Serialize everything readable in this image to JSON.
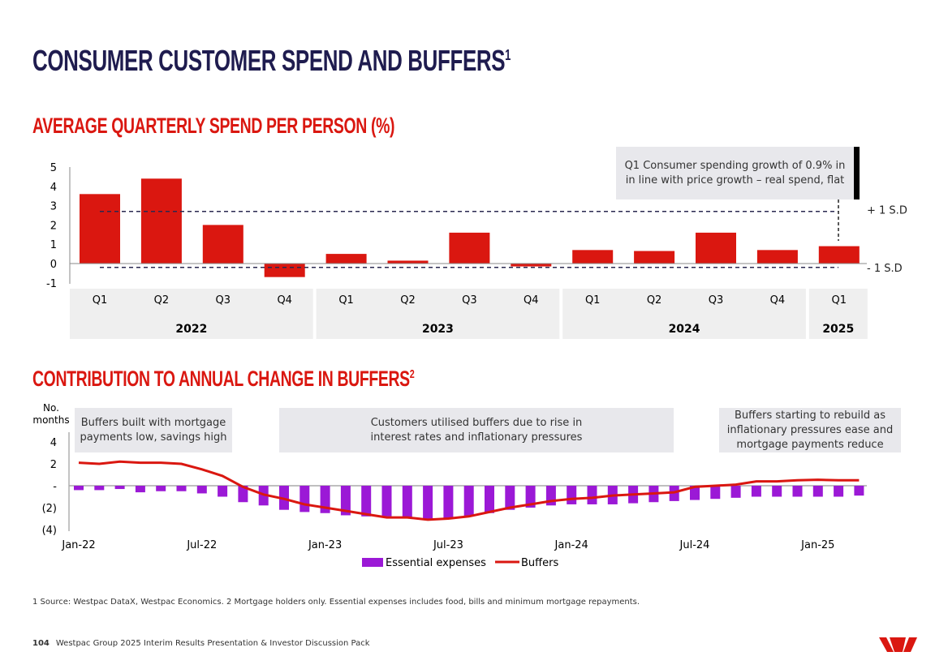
{
  "page": {
    "title": "CONSUMER CUSTOMER SPEND AND BUFFERS",
    "title_sup": "1",
    "footnote": "1 Source: Westpac DataX, Westpac Economics. 2 Mortgage holders only. Essential expenses includes food, bills and minimum mortgage repayments.",
    "page_number": "104",
    "footer_text": "Westpac Group 2025 Interim Results Presentation & Investor Discussion Pack",
    "logo": "Westpac W logo",
    "colors": {
      "brand_red": "#da1710",
      "navy": "#1f1c4f",
      "purple": "#9b19d6",
      "box_grey": "#e8e8ec"
    }
  },
  "chart_data": [
    {
      "type": "bar",
      "title": "AVERAGE QUARTERLY SPEND PER PERSON (%)",
      "categories": [
        "Q1",
        "Q2",
        "Q3",
        "Q4",
        "Q1",
        "Q2",
        "Q3",
        "Q4",
        "Q1",
        "Q2",
        "Q3",
        "Q4",
        "Q1"
      ],
      "groups": [
        {
          "label": "2022",
          "count": 4
        },
        {
          "label": "2023",
          "count": 4
        },
        {
          "label": "2024",
          "count": 4
        },
        {
          "label": "2025",
          "count": 1
        }
      ],
      "values": [
        3.6,
        4.4,
        2.0,
        -0.7,
        0.5,
        0.15,
        1.6,
        -0.15,
        0.7,
        0.65,
        1.6,
        0.7,
        0.9
      ],
      "ylim": [
        -1,
        5
      ],
      "yticks": [
        "5",
        "4",
        "3",
        "2",
        "1",
        "0",
        "-1"
      ],
      "reference_lines": [
        {
          "label": "+ 1 S.D",
          "value": 2.7
        },
        {
          "label": "- 1 S.D",
          "value": -0.2
        }
      ],
      "annotation": "Q1 Consumer spending growth of 0.9% in in line with price growth – real spend, flat",
      "color": "#da1710",
      "grid": false
    },
    {
      "type": "bar+line",
      "title": "CONTRIBUTION TO ANNUAL CHANGE IN BUFFERS",
      "title_sup": "2",
      "ylabel": "No. months",
      "ylim": [
        -4,
        4
      ],
      "yticks": [
        "4",
        "2",
        "-",
        "(2)",
        "(4)"
      ],
      "x_start": "Jan-22",
      "x_end": "Mar-25",
      "xticks": [
        "Jan-22",
        "Jul-22",
        "Jan-23",
        "Jul-23",
        "Jan-24",
        "Jul-24",
        "Jan-25"
      ],
      "series": [
        {
          "name": "Essential expenses",
          "type": "bar",
          "color": "#9b19d6",
          "values": [
            -0.4,
            -0.4,
            -0.3,
            -0.6,
            -0.5,
            -0.5,
            -0.7,
            -1.0,
            -1.5,
            -1.8,
            -2.2,
            -2.4,
            -2.5,
            -2.7,
            -2.8,
            -2.8,
            -2.9,
            -3.0,
            -3.0,
            -2.8,
            -2.5,
            -2.2,
            -2.0,
            -1.8,
            -1.7,
            -1.7,
            -1.7,
            -1.6,
            -1.5,
            -1.4,
            -1.3,
            -1.2,
            -1.1,
            -1.0,
            -1.0,
            -1.0,
            -1.0,
            -1.0,
            -0.9
          ]
        },
        {
          "name": "Buffers",
          "type": "line",
          "color": "#da1710",
          "values": [
            2.1,
            2.0,
            2.2,
            2.1,
            2.1,
            2.0,
            1.5,
            0.9,
            -0.1,
            -0.8,
            -1.2,
            -1.7,
            -2.0,
            -2.3,
            -2.6,
            -2.9,
            -2.9,
            -3.1,
            -3.0,
            -2.8,
            -2.4,
            -2.0,
            -1.7,
            -1.4,
            -1.2,
            -1.1,
            -0.9,
            -0.8,
            -0.7,
            -0.6,
            -0.1,
            0.0,
            0.1,
            0.4,
            0.4,
            0.5,
            0.55,
            0.5,
            0.5
          ]
        }
      ],
      "annotations": [
        "Buffers built with mortgage payments low, savings high",
        "Customers utilised buffers due to rise in interest rates and inflationary pressures",
        "Buffers starting to rebuild as inflationary pressures ease and mortgage payments reduce"
      ],
      "legend": "bottom",
      "grid": false
    }
  ]
}
